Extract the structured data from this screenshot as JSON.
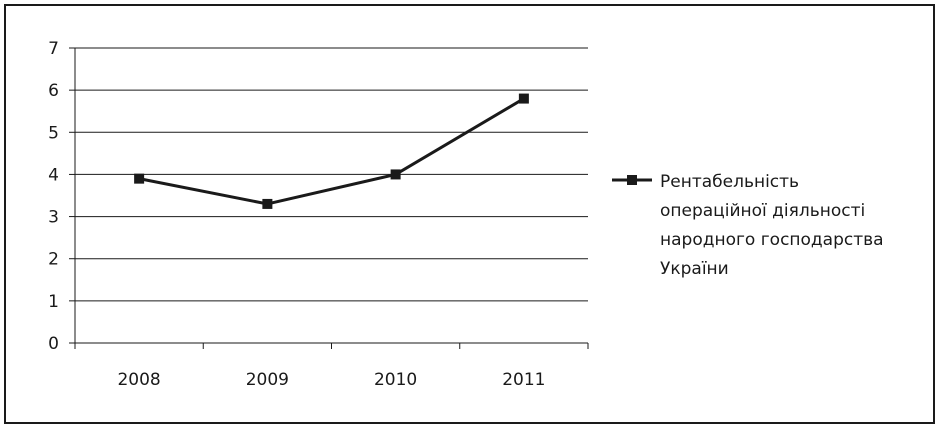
{
  "chart_data": {
    "type": "line",
    "categories": [
      "2008",
      "2009",
      "2010",
      "2011"
    ],
    "series": [
      {
        "name": "Рентабельність операційної діяльності народного господарства України",
        "values": [
          3.9,
          3.3,
          4.0,
          5.8
        ]
      }
    ],
    "ylim": [
      0,
      7
    ],
    "yticks": [
      "0",
      "1",
      "2",
      "3",
      "4",
      "5",
      "6",
      "7"
    ],
    "grid": true,
    "legend_position": "right",
    "legend_lines": [
      "Рентабельність",
      "операційної діяльності",
      "народного господарства",
      "України"
    ],
    "colors": {
      "series": "#1a1a1a",
      "grid": "#1a1a1a"
    }
  }
}
